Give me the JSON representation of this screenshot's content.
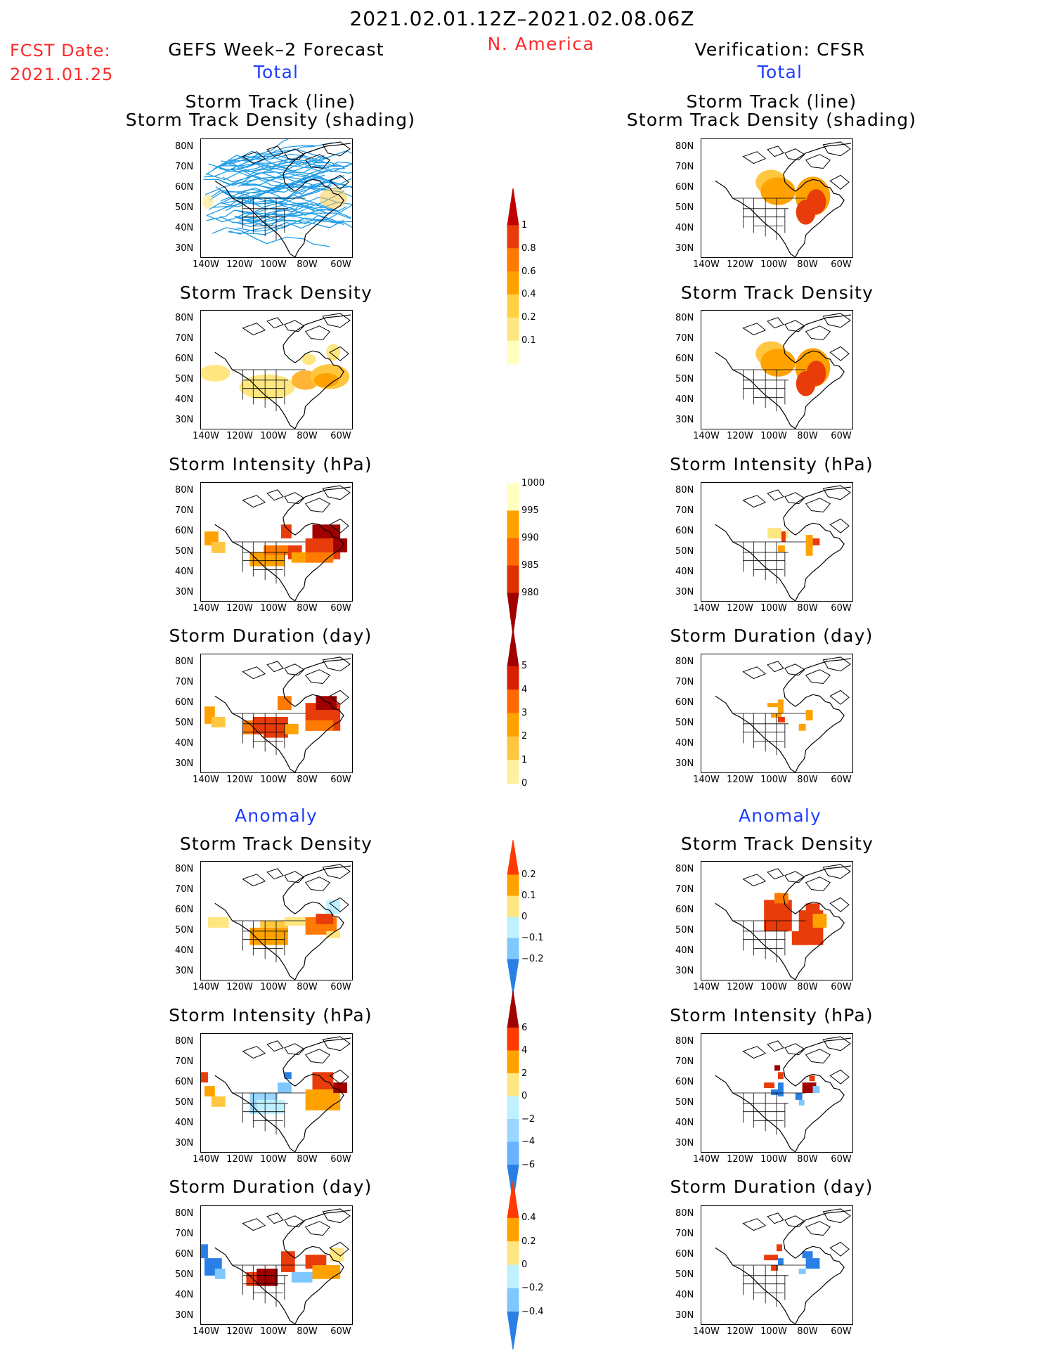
{
  "header": {
    "date_range": "2021.02.01.12Z–2021.02.08.06Z",
    "region": "N. America",
    "fcst_label": "FCST Date:",
    "fcst_date": "2021.01.25",
    "left_title": "GEFS Week–2 Forecast",
    "right_title": "Verification: CFSR",
    "total_left": "Total",
    "total_right": "Total",
    "anomaly_left": "Anomaly",
    "anomaly_right": "Anomaly"
  },
  "panels": {
    "track_line_1": "Storm Track (line)",
    "track_line_2": "Storm Track Density (shading)",
    "density": "Storm Track Density",
    "intensity": "Storm Intensity (hPa)",
    "duration": "Storm Duration (day)"
  },
  "axes": {
    "lat_ticks": [
      "80N",
      "70N",
      "60N",
      "50N",
      "40N",
      "30N"
    ],
    "lon_ticks": [
      "140W",
      "120W",
      "100W",
      "80W",
      "60W"
    ]
  },
  "colorbars": {
    "density_total": {
      "labels": [
        "1",
        "0.8",
        "0.6",
        "0.4",
        "0.2",
        "0.1"
      ],
      "colors": [
        "#c00000",
        "#e83c0a",
        "#ff7a00",
        "#ffa200",
        "#ffd040",
        "#ffe680",
        "#ffffbf"
      ]
    },
    "intensity_total": {
      "labels": [
        "1000",
        "995",
        "990",
        "985",
        "980"
      ],
      "colors": [
        "#ffffbf",
        "#ffa200",
        "#ff6a00",
        "#e03000",
        "#a00000"
      ]
    },
    "duration_total": {
      "labels": [
        "5",
        "4",
        "3",
        "2",
        "1",
        "0"
      ],
      "colors": [
        "#a00000",
        "#d82000",
        "#ff6a00",
        "#ffa200",
        "#ffc640",
        "#fff0a0"
      ]
    },
    "density_anom": {
      "labels": [
        "0.2",
        "0.1",
        "0",
        "−0.1",
        "−0.2"
      ],
      "colors": [
        "#ff3a00",
        "#ffa200",
        "#ffe680",
        "#bff0ff",
        "#7ec8ff",
        "#2a7fe6"
      ]
    },
    "intensity_anom": {
      "labels": [
        "6",
        "4",
        "2",
        "0",
        "−2",
        "−4",
        "−6"
      ],
      "colors": [
        "#a00000",
        "#ff3a00",
        "#ffa200",
        "#ffe680",
        "#bff0ff",
        "#9ad6ff",
        "#6ab4ff",
        "#2a7fe6"
      ]
    },
    "duration_anom": {
      "labels": [
        "0.4",
        "0.2",
        "0",
        "−0.2",
        "−0.4"
      ],
      "colors": [
        "#ff3a00",
        "#ffa200",
        "#ffe680",
        "#bff0ff",
        "#7ec8ff",
        "#2a7fe6"
      ]
    }
  },
  "colors": {
    "title_red": "#ff2a2a",
    "title_blue": "#1e3cff",
    "track_line": "#1e9be6"
  }
}
